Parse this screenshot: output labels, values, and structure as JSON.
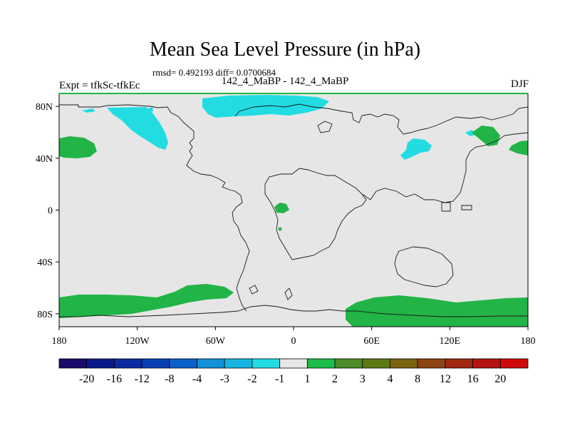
{
  "title": "Mean Sea Level Pressure (in hPa)",
  "stats_line": "rmsd= 0.492193 diff= 0.0700684",
  "comparison": "142_4_MaBP - 142_4_MaBP",
  "experiment": "Expt = tfkSc-tfkEc",
  "season": "DJF",
  "axes": {
    "lon_ticks": [
      "180",
      "120W",
      "60W",
      "0",
      "60E",
      "120E",
      "180"
    ],
    "lat_ticks": [
      "80N",
      "40N",
      "0",
      "40S",
      "80S"
    ]
  },
  "colorbar": {
    "labels": [
      "-20",
      "-16",
      "-12",
      "-8",
      "-4",
      "-3",
      "-2",
      "-1",
      "1",
      "2",
      "3",
      "4",
      "8",
      "12",
      "16",
      "20"
    ],
    "colors": [
      "#1a0a6b",
      "#0a1a8c",
      "#0a2aa0",
      "#0840b4",
      "#0a60c8",
      "#1290d8",
      "#18b4e0",
      "#22dce2",
      "#e6e6e6",
      "#1cbc48",
      "#4a8c28",
      "#5c7a14",
      "#7a6410",
      "#8c4414",
      "#a02610",
      "#b41410",
      "#d00a0a"
    ]
  },
  "map_colors": {
    "background": "#e6e6e6",
    "positive": "#22b446",
    "negative": "#22dce2"
  }
}
